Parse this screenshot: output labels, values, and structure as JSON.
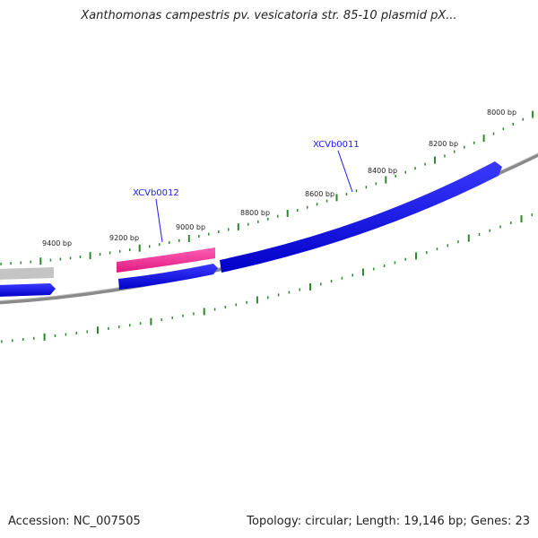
{
  "title": "Xanthomonas campestris pv. vesicatoria str. 85-10 plasmid pX...",
  "footer": {
    "accession": "Accession: NC_007505",
    "summary": "Topology: circular; Length: 19,146 bp; Genes: 23"
  },
  "ticks": [
    "8000 bp",
    "8200 bp",
    "8400 bp",
    "8600 bp",
    "8800 bp",
    "9000 bp",
    "9200 bp",
    "9400 bp"
  ],
  "gene_labels": [
    "XCVb0011",
    "XCVb0012"
  ],
  "colors": {
    "gene_forward": "#1010ee",
    "gene_highlight": "#ff2d9b",
    "gene_grey": "#c0c0c0",
    "backbone": "#808080",
    "tick": "#2a8a2a",
    "label_blue": "#1a1aff"
  }
}
